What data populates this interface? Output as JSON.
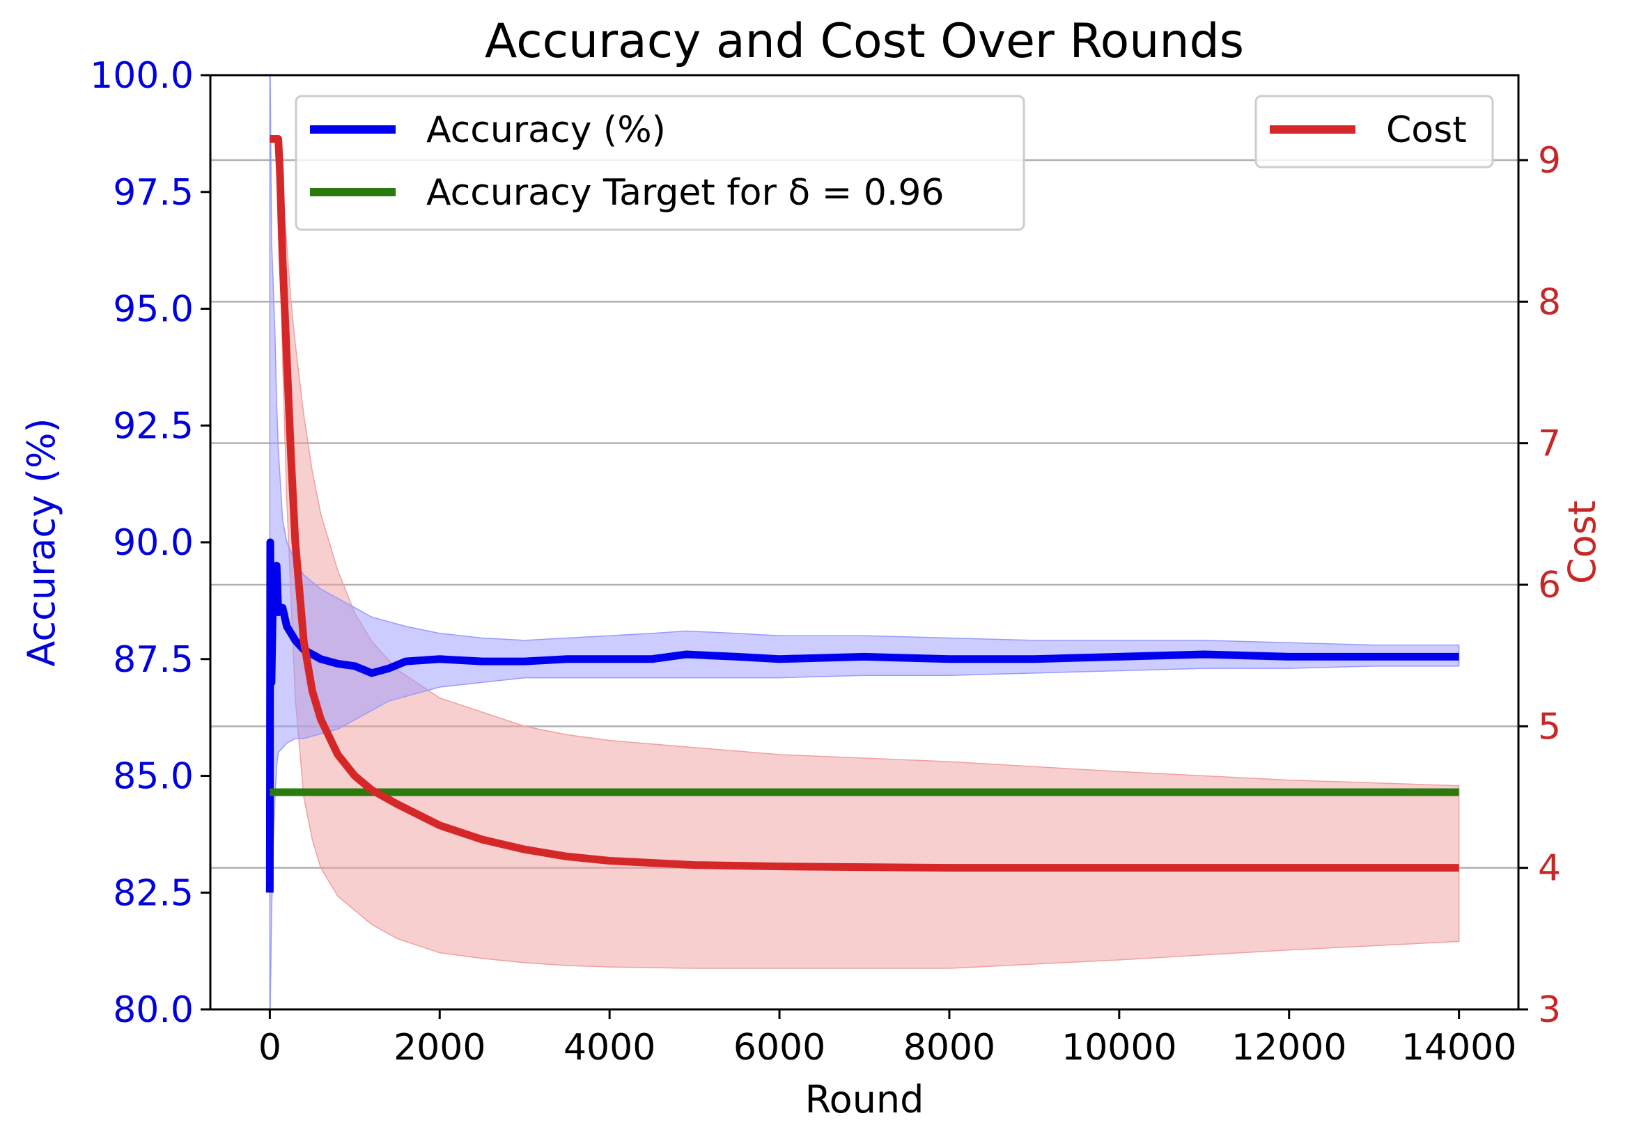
{
  "chart_data": {
    "type": "line",
    "title": "Accuracy and Cost Over Rounds",
    "xlabel": "Round",
    "ylabel_left": "Accuracy (%)",
    "ylabel_right": "Cost",
    "xlim": [
      -700,
      14700
    ],
    "ylim_left": [
      80.0,
      100.0
    ],
    "ylim_right": [
      3,
      9.6
    ],
    "x_ticks": [
      "0",
      "2000",
      "4000",
      "6000",
      "8000",
      "10000",
      "12000",
      "14000"
    ],
    "y_left_ticks": [
      "80.0",
      "82.5",
      "85.0",
      "87.5",
      "90.0",
      "92.5",
      "95.0",
      "97.5",
      "100.0"
    ],
    "y_right_ticks": [
      "3",
      "4",
      "5",
      "6",
      "7",
      "8",
      "9"
    ],
    "grid": "horizontal (right axis)",
    "legend_left": {
      "position": "top-left",
      "entries": [
        "Accuracy (%)",
        "Accuracy Target for δ = 0.96"
      ]
    },
    "legend_right": {
      "position": "top-right",
      "entries": [
        "Cost"
      ]
    },
    "colors": {
      "accuracy": "#0000ee",
      "accuracy_band": "#9999ff",
      "target": "#2a7a0e",
      "cost": "#d62728",
      "cost_band": "#f0a0a0",
      "left_axis": "#0000dd",
      "right_axis": "#c62828"
    },
    "series": [
      {
        "name": "Accuracy (%)",
        "axis": "left",
        "x": [
          0,
          5,
          20,
          40,
          60,
          80,
          100,
          150,
          200,
          300,
          400,
          600,
          800,
          1000,
          1200,
          1400,
          1600,
          2000,
          2500,
          3000,
          3500,
          4000,
          4500,
          4900,
          5500,
          6000,
          7000,
          8000,
          9000,
          10000,
          11000,
          12000,
          13000,
          14000
        ],
        "y": [
          82.5,
          90.0,
          87.0,
          89.2,
          88.6,
          89.5,
          88.5,
          88.6,
          88.2,
          87.9,
          87.7,
          87.5,
          87.4,
          87.35,
          87.2,
          87.3,
          87.45,
          87.5,
          87.45,
          87.45,
          87.5,
          87.5,
          87.5,
          87.6,
          87.55,
          87.5,
          87.55,
          87.5,
          87.5,
          87.55,
          87.6,
          87.55,
          87.55,
          87.55
        ],
        "lower": [
          80.0,
          80.0,
          82.0,
          83.5,
          84.5,
          85.2,
          85.5,
          85.6,
          85.7,
          85.8,
          85.8,
          85.9,
          86.0,
          86.2,
          86.4,
          86.6,
          86.7,
          86.9,
          87.0,
          87.1,
          87.1,
          87.1,
          87.1,
          87.1,
          87.1,
          87.1,
          87.15,
          87.15,
          87.2,
          87.25,
          87.3,
          87.3,
          87.35,
          87.35
        ],
        "upper": [
          100.0,
          100.0,
          96.5,
          95.5,
          94.5,
          93.0,
          92.0,
          90.5,
          90.0,
          89.6,
          89.3,
          89.0,
          88.8,
          88.6,
          88.4,
          88.3,
          88.2,
          88.05,
          87.95,
          87.9,
          87.95,
          88.0,
          88.05,
          88.1,
          88.05,
          88.0,
          88.0,
          87.95,
          87.9,
          87.9,
          87.9,
          87.85,
          87.8,
          87.8
        ]
      },
      {
        "name": "Accuracy Target for δ = 0.96",
        "axis": "left",
        "x": [
          0,
          14000
        ],
        "y": [
          84.65,
          84.65
        ]
      },
      {
        "name": "Cost",
        "axis": "right",
        "x": [
          0,
          100,
          120,
          150,
          200,
          250,
          300,
          400,
          500,
          600,
          800,
          1000,
          1200,
          1500,
          2000,
          2500,
          3000,
          3500,
          4000,
          5000,
          6000,
          8000,
          10000,
          12000,
          14000
        ],
        "y": [
          9.15,
          9.15,
          8.9,
          8.3,
          7.6,
          6.9,
          6.3,
          5.6,
          5.25,
          5.05,
          4.8,
          4.65,
          4.55,
          4.45,
          4.3,
          4.2,
          4.13,
          4.08,
          4.05,
          4.02,
          4.01,
          4.0,
          4.0,
          4.0,
          4.0
        ],
        "lower": [
          9.15,
          9.15,
          8.7,
          7.6,
          6.6,
          5.9,
          5.2,
          4.5,
          4.2,
          4.0,
          3.8,
          3.7,
          3.6,
          3.5,
          3.4,
          3.36,
          3.33,
          3.31,
          3.3,
          3.29,
          3.29,
          3.29,
          3.35,
          3.42,
          3.48
        ],
        "upper": [
          9.15,
          9.15,
          9.1,
          8.8,
          8.4,
          8.0,
          7.7,
          7.2,
          6.8,
          6.5,
          6.1,
          5.8,
          5.6,
          5.4,
          5.2,
          5.1,
          5.0,
          4.94,
          4.9,
          4.85,
          4.8,
          4.75,
          4.68,
          4.62,
          4.58
        ]
      }
    ]
  }
}
